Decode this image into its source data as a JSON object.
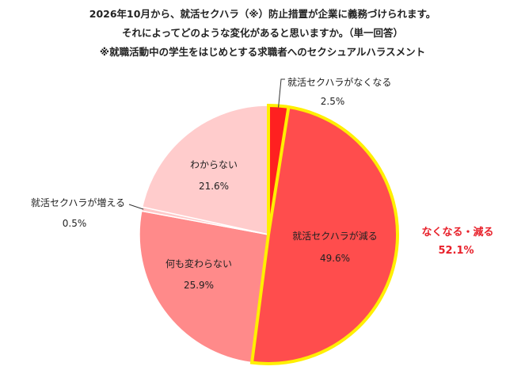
{
  "title_lines": [
    "2026年10月から、就活セクハラ（※）防止措置が企業に義務づけられます。",
    "それによってどのような変化があると思いますか。（単一回答）",
    "※就職活動中の学生をはじめとする求職者へのセクシュアルハラスメント"
  ],
  "chart_data": {
    "type": "pie",
    "start_angle_deg": 0,
    "direction": "clockwise",
    "slices": [
      {
        "label": "就活セクハラがなくなる",
        "value": 2.5,
        "value_label": "2.5%",
        "color": "#ff2020",
        "highlight": true
      },
      {
        "label": "就活セクハラが減る",
        "value": 49.6,
        "value_label": "49.6%",
        "color": "#ff4d4d",
        "highlight": true
      },
      {
        "label": "何も変わらない",
        "value": 25.9,
        "value_label": "25.9%",
        "color": "#ff8a8a",
        "highlight": false
      },
      {
        "label": "就活セクハラが増える",
        "value": 0.5,
        "value_label": "0.5%",
        "color": "#ffc9c9",
        "highlight": false
      },
      {
        "label": "わからない",
        "value": 21.6,
        "value_label": "21.6%",
        "color": "#ffcccc",
        "highlight": false
      }
    ],
    "highlight_outline_color": "#ffef00",
    "annotation": {
      "label": "なくなる・減る",
      "value_label": "52.1%",
      "color": "#e8202a"
    }
  }
}
